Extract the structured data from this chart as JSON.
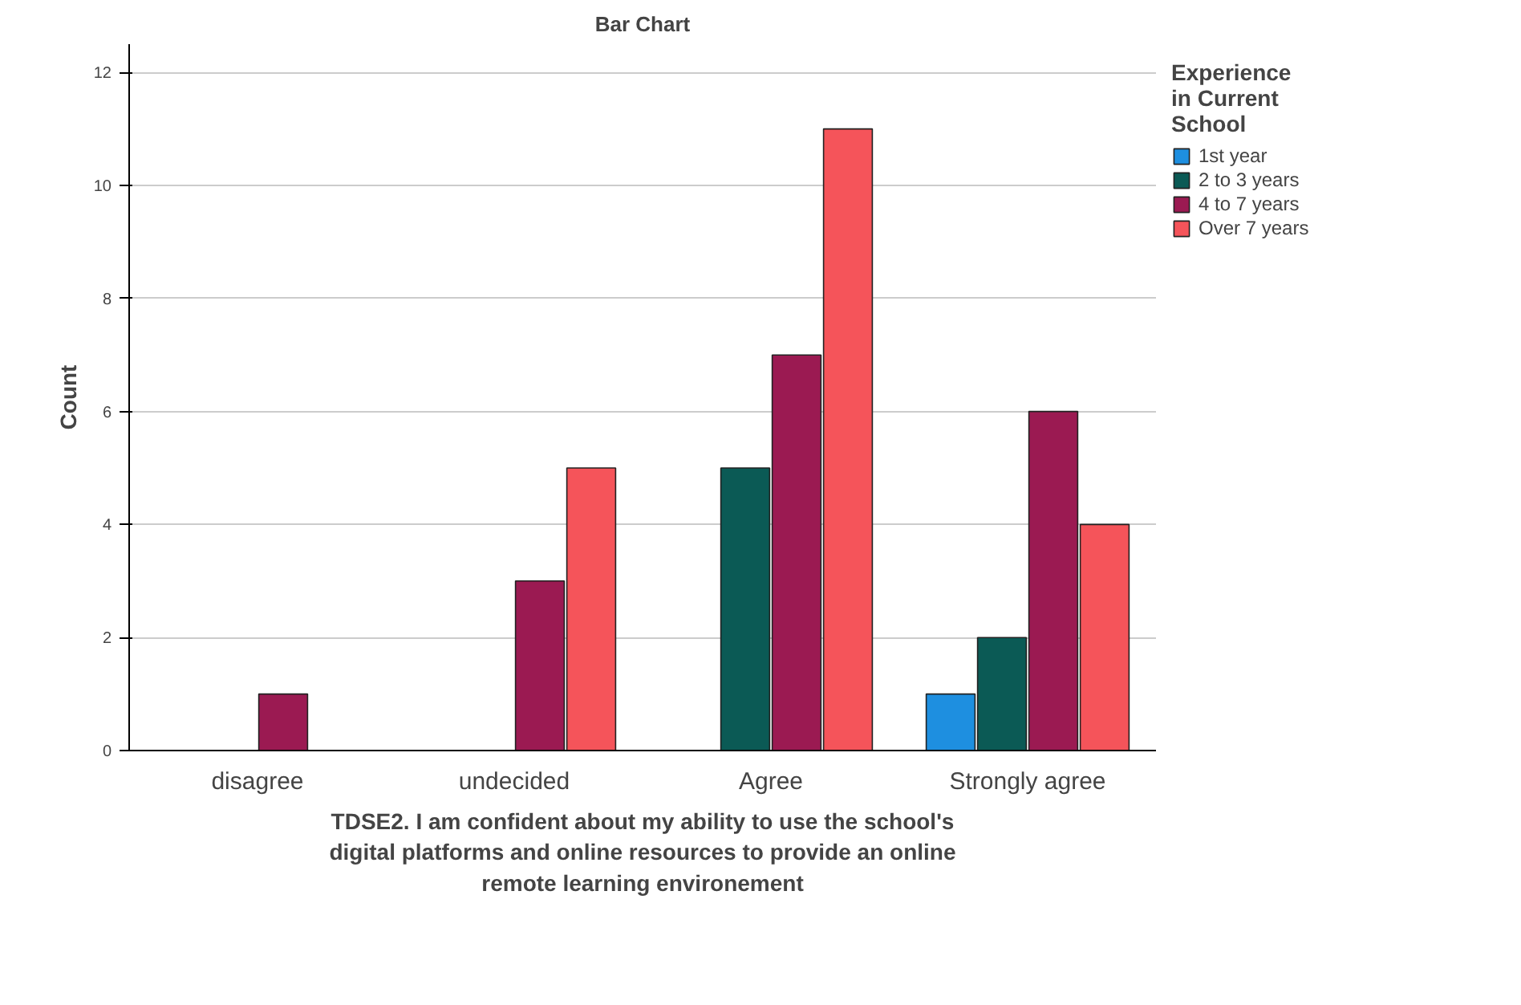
{
  "chart_data": {
    "type": "bar",
    "title": "Bar Chart",
    "xlabel": "TDSE2. I am confident about my ability to use the school's digital platforms and online resources to provide an online remote learning environement",
    "ylabel": "Count",
    "legend_title": "Experience in Current School",
    "categories": [
      "disagree",
      "undecided",
      "Agree",
      "Strongly agree"
    ],
    "series": [
      {
        "name": "1st year",
        "color": "#1e8fe0",
        "values": [
          null,
          null,
          null,
          1
        ]
      },
      {
        "name": "2 to 3 years",
        "color": "#0b5a55",
        "values": [
          null,
          null,
          5,
          2
        ]
      },
      {
        "name": "4 to 7 years",
        "color": "#9b1a52",
        "values": [
          1,
          3,
          7,
          6
        ]
      },
      {
        "name": "Over 7 years",
        "color": "#f5545a",
        "values": [
          null,
          5,
          11,
          4
        ]
      }
    ],
    "ylim": [
      0,
      12.5
    ],
    "yticks": [
      0,
      2,
      4,
      6,
      8,
      10,
      12
    ],
    "grid": "y",
    "legend": "top right"
  }
}
